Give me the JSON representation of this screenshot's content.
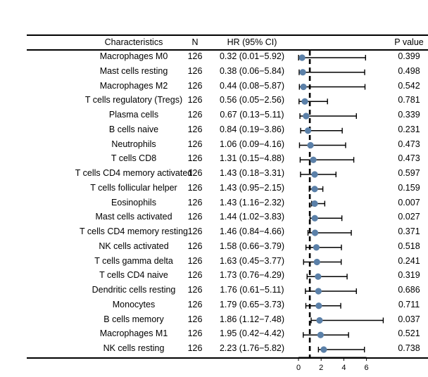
{
  "headers": {
    "characteristics": "Characteristics",
    "n": "N",
    "hr": "HR (95% CI)",
    "p": "P value"
  },
  "chart_data": {
    "type": "forest",
    "x_reference_line": 1,
    "xlim": [
      0,
      6
    ],
    "xticks": [
      0,
      2,
      4,
      6
    ],
    "rows": [
      {
        "label": "Macrophages M0",
        "n": "126",
        "hr_text": "0.32 (0.01−5.92)",
        "hr": 0.32,
        "lower": 0.01,
        "upper": 5.92,
        "p": "0.399"
      },
      {
        "label": "Mast cells resting",
        "n": "126",
        "hr_text": "0.38 (0.06−5.84)",
        "hr": 0.38,
        "lower": 0.06,
        "upper": 5.84,
        "p": "0.498"
      },
      {
        "label": "Macrophages M2",
        "n": "126",
        "hr_text": "0.44 (0.08−5.87)",
        "hr": 0.44,
        "lower": 0.08,
        "upper": 5.87,
        "p": "0.542"
      },
      {
        "label": "T cells regulatory (Tregs)",
        "n": "126",
        "hr_text": "0.56 (0.05−2.56)",
        "hr": 0.56,
        "lower": 0.05,
        "upper": 2.56,
        "p": "0.781"
      },
      {
        "label": "Plasma cells",
        "n": "126",
        "hr_text": "0.67 (0.13−5.11)",
        "hr": 0.67,
        "lower": 0.13,
        "upper": 5.11,
        "p": "0.339"
      },
      {
        "label": "B cells naive",
        "n": "126",
        "hr_text": "0.84 (0.19−3.86)",
        "hr": 0.84,
        "lower": 0.19,
        "upper": 3.86,
        "p": "0.231"
      },
      {
        "label": "Neutrophils",
        "n": "126",
        "hr_text": "1.06 (0.09−4.16)",
        "hr": 1.06,
        "lower": 0.09,
        "upper": 4.16,
        "p": "0.473"
      },
      {
        "label": "T cells CD8",
        "n": "126",
        "hr_text": "1.31 (0.15−4.88)",
        "hr": 1.31,
        "lower": 0.15,
        "upper": 4.88,
        "p": "0.473"
      },
      {
        "label": "T cells CD4 memory activated",
        "n": "126",
        "hr_text": "1.43 (0.18−3.31)",
        "hr": 1.43,
        "lower": 0.18,
        "upper": 3.31,
        "p": "0.597"
      },
      {
        "label": "T cells follicular helper",
        "n": "126",
        "hr_text": "1.43 (0.95−2.15)",
        "hr": 1.43,
        "lower": 0.95,
        "upper": 2.15,
        "p": "0.159"
      },
      {
        "label": "Eosinophils",
        "n": "126",
        "hr_text": "1.43 (1.16−2.32)",
        "hr": 1.43,
        "lower": 1.16,
        "upper": 2.32,
        "p": "0.007"
      },
      {
        "label": "Mast cells activated",
        "n": "126",
        "hr_text": "1.44 (1.02−3.83)",
        "hr": 1.44,
        "lower": 1.02,
        "upper": 3.83,
        "p": "0.027"
      },
      {
        "label": "T cells CD4 memory resting",
        "n": "126",
        "hr_text": "1.46 (0.84−4.66)",
        "hr": 1.46,
        "lower": 0.84,
        "upper": 4.66,
        "p": "0.371"
      },
      {
        "label": "NK cells activated",
        "n": "126",
        "hr_text": "1.58 (0.66−3.79)",
        "hr": 1.58,
        "lower": 0.66,
        "upper": 3.79,
        "p": "0.518"
      },
      {
        "label": "T cells gamma delta",
        "n": "126",
        "hr_text": "1.63 (0.45−3.77)",
        "hr": 1.63,
        "lower": 0.45,
        "upper": 3.77,
        "p": "0.241"
      },
      {
        "label": "T cells CD4 naive",
        "n": "126",
        "hr_text": "1.73 (0.76−4.29)",
        "hr": 1.73,
        "lower": 0.76,
        "upper": 4.29,
        "p": "0.319"
      },
      {
        "label": "Dendritic cells resting",
        "n": "126",
        "hr_text": "1.76 (0.61−5.11)",
        "hr": 1.76,
        "lower": 0.61,
        "upper": 5.11,
        "p": "0.686"
      },
      {
        "label": "Monocytes",
        "n": "126",
        "hr_text": "1.79 (0.65−3.73)",
        "hr": 1.79,
        "lower": 0.65,
        "upper": 3.73,
        "p": "0.711"
      },
      {
        "label": "B cells memory",
        "n": "126",
        "hr_text": "1.86 (1.12−7.48)",
        "hr": 1.86,
        "lower": 1.12,
        "upper": 7.48,
        "p": "0.037"
      },
      {
        "label": "Macrophages M1",
        "n": "126",
        "hr_text": "1.95 (0.42−4.42)",
        "hr": 1.95,
        "lower": 0.42,
        "upper": 4.42,
        "p": "0.521"
      },
      {
        "label": "NK cells resting",
        "n": "126",
        "hr_text": "2.23 (1.76−5.82)",
        "hr": 2.23,
        "lower": 1.76,
        "upper": 5.82,
        "p": "0.738"
      }
    ],
    "colors": {
      "point": "#5b80a8",
      "line": "#000000"
    }
  }
}
